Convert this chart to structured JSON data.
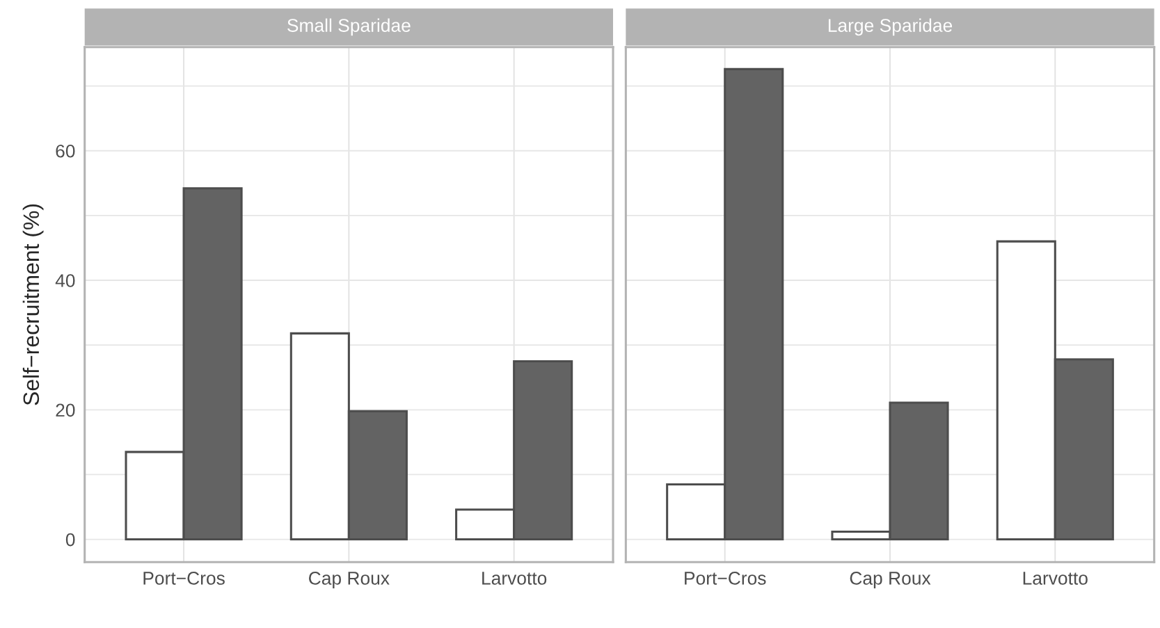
{
  "chart_data": [
    {
      "type": "bar",
      "title": "Small Sparidae",
      "ylabel": "Self−recruitment (%)",
      "categories": [
        "Port−Cros",
        "Cap Roux",
        "Larvotto"
      ],
      "series": [
        {
          "color": "#ffffff",
          "values": [
            13.5,
            31.8,
            4.6
          ]
        },
        {
          "color": "#636363",
          "values": [
            54.2,
            19.8,
            27.5
          ]
        }
      ],
      "ylim": [
        -3.5,
        76
      ],
      "yticks": [
        0,
        {
          "value": 10,
          "label": null
        },
        20,
        {
          "value": 30,
          "label": null
        },
        40,
        {
          "value": 50,
          "label": null
        },
        60,
        {
          "value": 70,
          "label": null
        }
      ],
      "grid": true
    },
    {
      "type": "bar",
      "title": "Large Sparidae",
      "categories": [
        "Port−Cros",
        "Cap Roux",
        "Larvotto"
      ],
      "series": [
        {
          "color": "#ffffff",
          "values": [
            8.5,
            1.2,
            46.0
          ]
        },
        {
          "color": "#636363",
          "values": [
            72.6,
            21.1,
            27.8
          ]
        }
      ],
      "ylim": [
        -3.5,
        76
      ],
      "yticks": [
        0,
        {
          "value": 10,
          "label": null
        },
        20,
        {
          "value": 30,
          "label": null
        },
        40,
        {
          "value": 50,
          "label": null
        },
        60,
        {
          "value": 70,
          "label": null
        }
      ],
      "grid": true,
      "tick_labels": "x"
    }
  ]
}
